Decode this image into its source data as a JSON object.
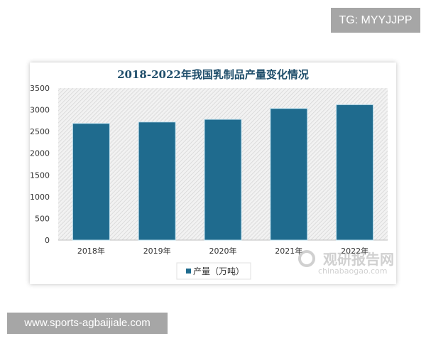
{
  "overlays": {
    "tg": "TG: MYYJJPP",
    "site": "www.sports-agbaijiale.com"
  },
  "watermark": {
    "cn": "观研报告网",
    "en": "chinabaogao.com"
  },
  "colors": {
    "bar": "#1f6b8e",
    "title": "#1f4e6b"
  },
  "chart_data": {
    "type": "bar",
    "title": "2018-2022年我国乳制品产量变化情况",
    "categories": [
      "2018年",
      "2019年",
      "2020年",
      "2021年",
      "2022年"
    ],
    "series": [
      {
        "name": "产量（万吨）",
        "values": [
          2687,
          2719,
          2780,
          3031,
          3118
        ]
      }
    ],
    "yticks": [
      "0",
      "500",
      "1000",
      "1500",
      "2000",
      "2500",
      "3000",
      "3500"
    ],
    "ylim": [
      0,
      3500
    ],
    "legend": "bottom",
    "grid": false
  }
}
